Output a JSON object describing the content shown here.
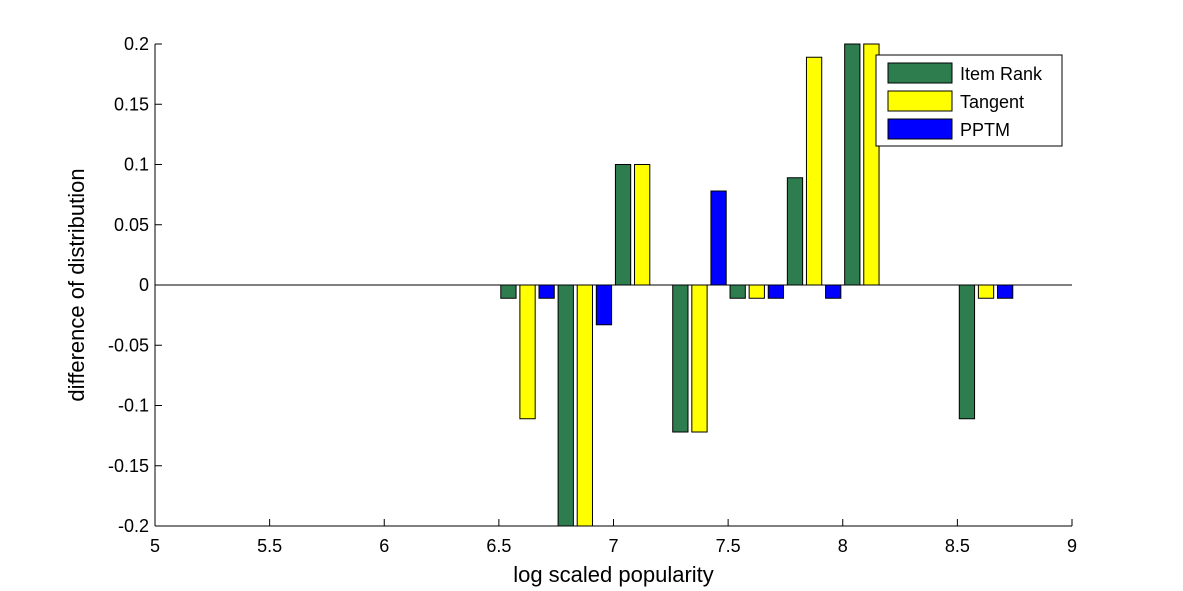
{
  "chart_data": {
    "type": "bar",
    "xlabel": "log scaled popularity",
    "ylabel": "difference of distribution",
    "xlim": [
      5,
      9
    ],
    "ylim": [
      -0.2,
      0.2
    ],
    "xticks": [
      "5",
      "5.5",
      "6",
      "6.5",
      "7",
      "7.5",
      "8",
      "8.5",
      "9"
    ],
    "yticks": [
      "0.2",
      "0.15",
      "0.1",
      "0.05",
      "0",
      "-0.05",
      "-0.1",
      "-0.15",
      "-0.2"
    ],
    "x": [
      6.625,
      6.875,
      7.125,
      7.375,
      7.625,
      7.875,
      8.125,
      8.625
    ],
    "series": [
      {
        "name": "Item Rank",
        "color": "#2e7d4f",
        "values": [
          -0.011,
          -0.2,
          0.1,
          -0.122,
          -0.011,
          0.089,
          0.2,
          -0.111
        ]
      },
      {
        "name": "Tangent",
        "color": "#ffff00",
        "values": [
          -0.111,
          -0.2,
          0.1,
          -0.122,
          -0.011,
          0.189,
          0.2,
          -0.011
        ]
      },
      {
        "name": "PPTM",
        "color": "#0000ff",
        "values": [
          -0.011,
          -0.033,
          0,
          0.078,
          -0.011,
          -0.011,
          0,
          -0.011
        ]
      }
    ],
    "legend_position": "top-right",
    "grid": false
  }
}
